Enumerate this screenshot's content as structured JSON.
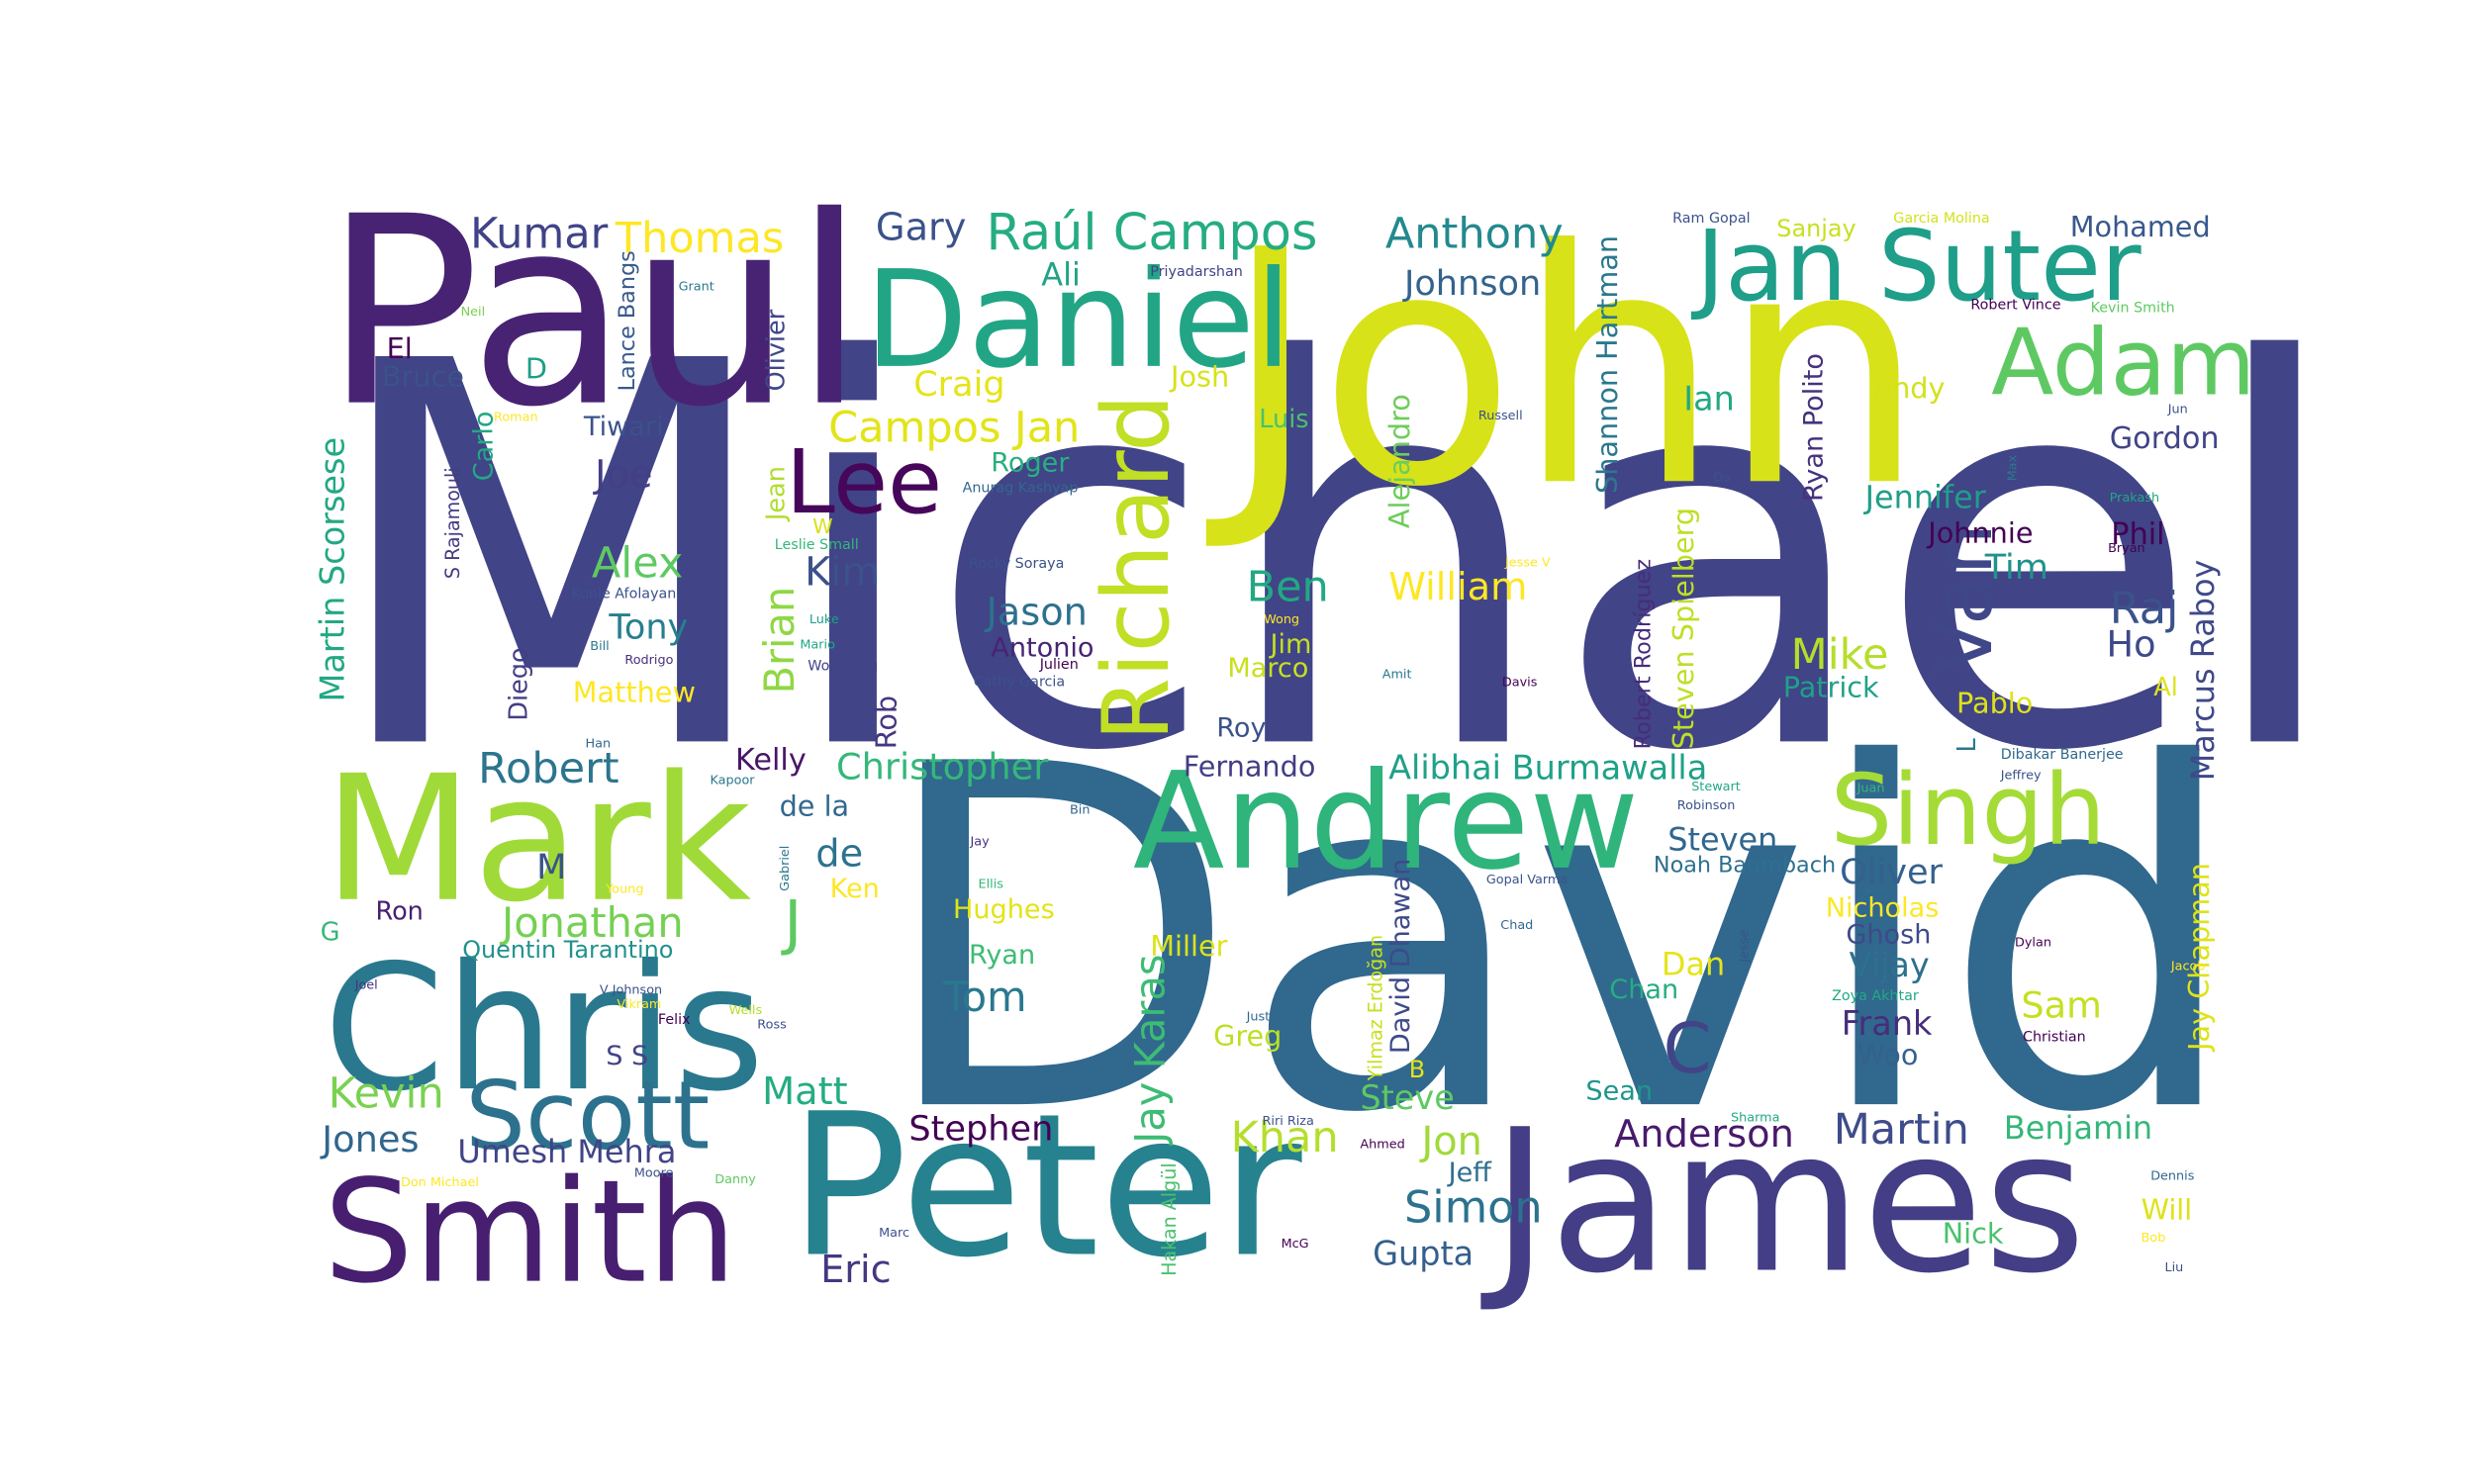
{
  "words": [
    {
      "text": "Michael",
      "color": "#414487"
    },
    {
      "text": "David",
      "color": "#31688e"
    },
    {
      "text": "John",
      "color": "#d8e219"
    },
    {
      "text": "Paul",
      "color": "#482374"
    },
    {
      "text": "Peter",
      "color": "#26828e"
    },
    {
      "text": "James",
      "color": "#433e85"
    },
    {
      "text": "Chris",
      "color": "#2a788e"
    },
    {
      "text": "Mark",
      "color": "#a0da39"
    },
    {
      "text": "Daniel",
      "color": "#21a585"
    },
    {
      "text": "Smith",
      "color": "#481f70"
    },
    {
      "text": "Andrew",
      "color": "#2fb47c"
    },
    {
      "text": "Jan Suter",
      "color": "#1f9e89"
    },
    {
      "text": "Richard",
      "color": "#c0df25"
    },
    {
      "text": "Adam",
      "color": "#5ec962"
    },
    {
      "text": "Singh",
      "color": "#a5db36"
    },
    {
      "text": "Scott",
      "color": "#2c728e"
    },
    {
      "text": "Lee",
      "color": "#46075a"
    },
    {
      "text": "Van",
      "color": "#3f4788"
    },
    {
      "text": "Raúl Campos",
      "color": "#25ac82"
    },
    {
      "text": "Thomas",
      "color": "#fde725"
    },
    {
      "text": "Kumar",
      "color": "#404387"
    },
    {
      "text": "Anthony",
      "color": "#23898e"
    },
    {
      "text": "Campos Jan",
      "color": "#e2e418"
    },
    {
      "text": "Martin Scorsese",
      "color": "#22a884"
    },
    {
      "text": "Jonathan",
      "color": "#75d054"
    },
    {
      "text": "Jay Karas",
      "color": "#3dbc74"
    },
    {
      "text": "Alibhai Burmawalla",
      "color": "#1fa188"
    },
    {
      "text": "Christopher",
      "color": "#35b779"
    },
    {
      "text": "Robert",
      "color": "#2b758e"
    },
    {
      "text": "Mohamed",
      "color": "#38588c"
    },
    {
      "text": "Johnson",
      "color": "#33638d"
    },
    {
      "text": "Gary",
      "color": "#3b528b"
    },
    {
      "text": "Shannon Hartman",
      "color": "#2a788e"
    },
    {
      "text": "Kevin",
      "color": "#7ad151"
    },
    {
      "text": "Jones",
      "color": "#31668e"
    },
    {
      "text": "Umesh Mehra",
      "color": "#414487"
    },
    {
      "text": "Stephen",
      "color": "#440154"
    },
    {
      "text": "Khan",
      "color": "#b5de2b"
    },
    {
      "text": "Anderson",
      "color": "#481a6c"
    },
    {
      "text": "Martin",
      "color": "#3e4c8a"
    },
    {
      "text": "Benjamin",
      "color": "#35b779"
    },
    {
      "text": "Simon",
      "color": "#2c728e"
    },
    {
      "text": "Gupta",
      "color": "#355f8d"
    },
    {
      "text": "Eric",
      "color": "#453781"
    },
    {
      "text": "Alex",
      "color": "#5ec962"
    },
    {
      "text": "Tony",
      "color": "#277f8e"
    },
    {
      "text": "Matthew",
      "color": "#fde725"
    },
    {
      "text": "Brian",
      "color": "#8fd744"
    },
    {
      "text": "Kim",
      "color": "#3b528b"
    },
    {
      "text": "Jason",
      "color": "#2d718e"
    },
    {
      "text": "Antonio",
      "color": "#482475"
    },
    {
      "text": "Ben",
      "color": "#22a884"
    },
    {
      "text": "William",
      "color": "#fde725"
    },
    {
      "text": "Mike",
      "color": "#b5de2b"
    },
    {
      "text": "Patrick",
      "color": "#1fa188"
    },
    {
      "text": "Raj",
      "color": "#3b528b"
    },
    {
      "text": "Ho",
      "color": "#3e4989"
    },
    {
      "text": "Marcus Raboy",
      "color": "#3e4989"
    },
    {
      "text": "Tim",
      "color": "#21918c"
    },
    {
      "text": "Johnnie",
      "color": "#440154"
    },
    {
      "text": "Jennifer",
      "color": "#1f9e89"
    },
    {
      "text": "Gordon",
      "color": "#414487"
    },
    {
      "text": "Phil",
      "color": "#440154"
    },
    {
      "text": "Andy",
      "color": "#d2e21b"
    },
    {
      "text": "Ian",
      "color": "#22a884"
    },
    {
      "text": "Ryan Polito",
      "color": "#46327e"
    },
    {
      "text": "Steven Spielberg",
      "color": "#bddf26"
    },
    {
      "text": "Robert Rodríguez",
      "color": "#472c7a"
    },
    {
      "text": "Pablo",
      "color": "#dde318"
    },
    {
      "text": "Al",
      "color": "#dde318"
    },
    {
      "text": "Joe",
      "color": "#433e85"
    },
    {
      "text": "Tiwari",
      "color": "#3b528b"
    },
    {
      "text": "Lance Bangs",
      "color": "#38598c"
    },
    {
      "text": "Olivier",
      "color": "#404688"
    },
    {
      "text": "Craig",
      "color": "#e5e419"
    },
    {
      "text": "Ali",
      "color": "#20a386"
    },
    {
      "text": "Josh",
      "color": "#d8e219"
    },
    {
      "text": "Luis",
      "color": "#4ac16d"
    },
    {
      "text": "Roger",
      "color": "#29af7f"
    },
    {
      "text": "Alejandro",
      "color": "#6ccd5a"
    },
    {
      "text": "Jim",
      "color": "#c2df23"
    },
    {
      "text": "Marco",
      "color": "#c8e020"
    },
    {
      "text": "Roy",
      "color": "#3b528b"
    },
    {
      "text": "Fernando",
      "color": "#433d84"
    },
    {
      "text": "Kelly",
      "color": "#481668"
    },
    {
      "text": "de la",
      "color": "#31688e"
    },
    {
      "text": "de",
      "color": "#2c728e"
    },
    {
      "text": "Ken",
      "color": "#fde725"
    },
    {
      "text": "J",
      "color": "#5ec962"
    },
    {
      "text": "M",
      "color": "#3b528b"
    },
    {
      "text": "Ron",
      "color": "#481f70"
    },
    {
      "text": "G",
      "color": "#35b779"
    },
    {
      "text": "Quentin Tarantino",
      "color": "#21918c"
    },
    {
      "text": "S S",
      "color": "#414487"
    },
    {
      "text": "Matt",
      "color": "#25ac82"
    },
    {
      "text": "Hughes",
      "color": "#e2e418"
    },
    {
      "text": "Ryan",
      "color": "#3dbc74"
    },
    {
      "text": "Tom",
      "color": "#2a788e"
    },
    {
      "text": "Miller",
      "color": "#dde318"
    },
    {
      "text": "Greg",
      "color": "#bddf26"
    },
    {
      "text": "David Dhawan",
      "color": "#3e4a89"
    },
    {
      "text": "Steve",
      "color": "#5ec962"
    },
    {
      "text": "Jon",
      "color": "#a0da39"
    },
    {
      "text": "Jeff",
      "color": "#2e6f8e"
    },
    {
      "text": "Steven",
      "color": "#31668e"
    },
    {
      "text": "Noah Baumbach",
      "color": "#2d708e"
    },
    {
      "text": "Oliver",
      "color": "#34608d"
    },
    {
      "text": "Nicholas",
      "color": "#fde725"
    },
    {
      "text": "Ghosh",
      "color": "#3e4a89"
    },
    {
      "text": "Vijay",
      "color": "#2c718e"
    },
    {
      "text": "Dan",
      "color": "#e5e419"
    },
    {
      "text": "Chan",
      "color": "#26ad81"
    },
    {
      "text": "C",
      "color": "#414487"
    },
    {
      "text": "Sam",
      "color": "#c5e021"
    },
    {
      "text": "Frank",
      "color": "#472d7b"
    },
    {
      "text": "Woo",
      "color": "#34618d"
    },
    {
      "text": "Sean",
      "color": "#1f968b"
    },
    {
      "text": "Jay Chapman",
      "color": "#dde318"
    },
    {
      "text": "Nick",
      "color": "#4ac16d"
    },
    {
      "text": "Will",
      "color": "#dde318"
    },
    {
      "text": "Sanjay",
      "color": "#c8e020"
    },
    {
      "text": "El",
      "color": "#440154"
    },
    {
      "text": "Bruce",
      "color": "#3b528b"
    },
    {
      "text": "D",
      "color": "#1f9e89"
    },
    {
      "text": "Diego",
      "color": "#433e85"
    },
    {
      "text": "Jean",
      "color": "#b2dd2d"
    },
    {
      "text": "Rob",
      "color": "#453781"
    },
    {
      "text": "Carlo",
      "color": "#22a884"
    },
    {
      "text": "S Rajamouli",
      "color": "#443b84"
    },
    {
      "text": "B",
      "color": "#e2e418"
    },
    {
      "text": "L",
      "color": "#2a788e"
    },
    {
      "text": "Yilmaz Erdoğan",
      "color": "#c8e020"
    },
    {
      "text": "Hakan Algül",
      "color": "#4ac16d"
    },
    {
      "text": "Ram Gopal",
      "color": "#3b528b"
    },
    {
      "text": "Garcia Molina",
      "color": "#d2e21b"
    },
    {
      "text": "Robert Vince",
      "color": "#440154"
    },
    {
      "text": "Kevin Smith",
      "color": "#5ec962"
    },
    {
      "text": "Priyadarshan",
      "color": "#404387"
    },
    {
      "text": "Neil",
      "color": "#7ad151"
    },
    {
      "text": "Grant",
      "color": "#2a788e"
    },
    {
      "text": "Roman",
      "color": "#fde725"
    },
    {
      "text": "Russell",
      "color": "#3b528b"
    },
    {
      "text": "Da",
      "color": "#3b528b"
    },
    {
      "text": "Max",
      "color": "#2a788e"
    },
    {
      "text": "Prakash",
      "color": "#22a884"
    },
    {
      "text": "Bryan",
      "color": "#440154"
    },
    {
      "text": "Jesse V",
      "color": "#fde725"
    },
    {
      "text": "Anurag Kashyap",
      "color": "#31688e"
    },
    {
      "text": "W",
      "color": "#d8e219"
    },
    {
      "text": "Leslie Small",
      "color": "#35b779"
    },
    {
      "text": "Rocky Soraya",
      "color": "#3b528b"
    },
    {
      "text": "Kunle Afolayan",
      "color": "#3b528b"
    },
    {
      "text": "Luke",
      "color": "#1f9e89"
    },
    {
      "text": "Bill",
      "color": "#2a788e"
    },
    {
      "text": "Rodrigo",
      "color": "#46327e"
    },
    {
      "text": "Mario",
      "color": "#22a884"
    },
    {
      "text": "Wong Jing",
      "color": "#414487"
    },
    {
      "text": "Wong",
      "color": "#fde725"
    },
    {
      "text": "Julien",
      "color": "#440154"
    },
    {
      "text": "Cathy Garcia",
      "color": "#3b528b"
    },
    {
      "text": "Amit",
      "color": "#2a788e"
    },
    {
      "text": "Davis",
      "color": "#440154"
    },
    {
      "text": "Han",
      "color": "#31688e"
    },
    {
      "text": "Kapoor",
      "color": "#2a788e"
    },
    {
      "text": "Stewart",
      "color": "#22a884"
    },
    {
      "text": "Robinson",
      "color": "#3b528b"
    },
    {
      "text": "Juan",
      "color": "#35b779"
    },
    {
      "text": "Jeffrey",
      "color": "#3b528b"
    },
    {
      "text": "Dibakar Banerjee",
      "color": "#31688e"
    },
    {
      "text": "Gabriel",
      "color": "#2a788e"
    },
    {
      "text": "Jay",
      "color": "#46327e"
    },
    {
      "text": "Bin",
      "color": "#31688e"
    },
    {
      "text": "Young",
      "color": "#fde725"
    },
    {
      "text": "Ellis",
      "color": "#35b779"
    },
    {
      "text": "Gopal Varma",
      "color": "#3b528b"
    },
    {
      "text": "Chad",
      "color": "#31688e"
    },
    {
      "text": "Jesse",
      "color": "#3b528b"
    },
    {
      "text": "Dylan",
      "color": "#440154"
    },
    {
      "text": "Jacob",
      "color": "#fde725"
    },
    {
      "text": "Joel",
      "color": "#46327e"
    },
    {
      "text": "V Johnson",
      "color": "#3b528b"
    },
    {
      "text": "Vikram",
      "color": "#fde725"
    },
    {
      "text": "Wells",
      "color": "#b5de2b"
    },
    {
      "text": "Felix",
      "color": "#440154"
    },
    {
      "text": "Ross",
      "color": "#3b528b"
    },
    {
      "text": "Justin",
      "color": "#31688e"
    },
    {
      "text": "Zoya Akhtar",
      "color": "#22a884"
    },
    {
      "text": "Christian",
      "color": "#440154"
    },
    {
      "text": "Riri Riza",
      "color": "#3b528b"
    },
    {
      "text": "Ahmed",
      "color": "#440154"
    },
    {
      "text": "Sharma",
      "color": "#22a884"
    },
    {
      "text": "Dennis",
      "color": "#31688e"
    },
    {
      "text": "Bob",
      "color": "#fde725"
    },
    {
      "text": "Liu",
      "color": "#3b528b"
    },
    {
      "text": "Don Michael",
      "color": "#fde725"
    },
    {
      "text": "Moore",
      "color": "#3b528b"
    },
    {
      "text": "Danny",
      "color": "#5ec962"
    },
    {
      "text": "Marc",
      "color": "#3b528b"
    },
    {
      "text": "McG",
      "color": "#440154"
    },
    {
      "text": "Jun",
      "color": "#3b528b"
    }
  ]
}
